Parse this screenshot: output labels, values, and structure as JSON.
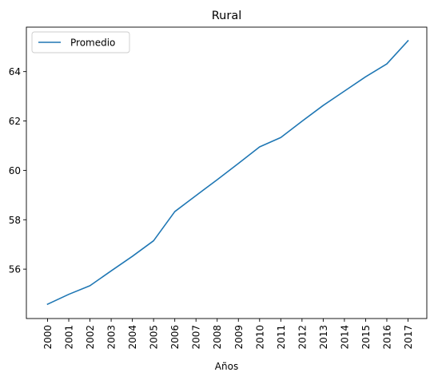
{
  "chart_data": {
    "type": "line",
    "title": "Rural",
    "xlabel": "Años",
    "ylabel": "",
    "x": [
      "2000",
      "2001",
      "2002",
      "2003",
      "2004",
      "2005",
      "2006",
      "2007",
      "2008",
      "2009",
      "2010",
      "2011",
      "2012",
      "2013",
      "2014",
      "2015",
      "2016",
      "2017"
    ],
    "series": [
      {
        "name": "Promedio",
        "color": "#1f77b4",
        "values": [
          54.58,
          54.98,
          55.33,
          55.93,
          56.52,
          57.15,
          58.33,
          58.98,
          59.62,
          60.28,
          60.95,
          61.33,
          61.99,
          62.63,
          63.21,
          63.79,
          64.31,
          65.25
        ]
      }
    ],
    "ylim": [
      54.0,
      65.8
    ],
    "yticks": [
      56,
      58,
      60,
      62,
      64
    ],
    "legend_position": "upper-left",
    "grid": false
  }
}
